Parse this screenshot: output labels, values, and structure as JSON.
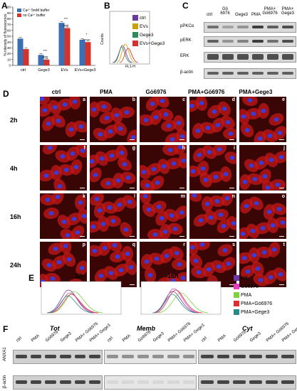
{
  "panels": {
    "A": "A",
    "B": "B",
    "C": "C",
    "D": "D",
    "E": "E",
    "F": "F"
  },
  "chart_data": [
    {
      "type": "bar",
      "ylabel": "% intensity of fluorescence",
      "ylim": [
        0,
        100
      ],
      "yticks": [
        "0",
        "10",
        "20",
        "30",
        "40",
        "50",
        "60",
        "70",
        "80",
        "90",
        "100"
      ],
      "categories": [
        "ctrl",
        "Gege3",
        "EVs",
        "EVs+Gege3"
      ],
      "series": [
        {
          "name": "Ca²⁺ 5mM buffer",
          "color": "#3a6fb5",
          "values": [
            46,
            18,
            73,
            44
          ]
        },
        {
          "name": "no Ca²⁺ buffer",
          "color": "#d2342c",
          "values": [
            28,
            10,
            64,
            40
          ]
        }
      ],
      "annotations": [
        "***",
        "###",
        "***",
        "###",
        "*",
        "******"
      ]
    }
  ],
  "panelB": {
    "yaxis": "Counts",
    "xaxis": "FL1-H",
    "legend": [
      {
        "label": "ctrl",
        "color": "#6b3aa0"
      },
      {
        "label": "EVs",
        "color": "#c8a000"
      },
      {
        "label": "Gege3",
        "color": "#2e8b57"
      },
      {
        "label": "EVs+Gege3",
        "color": "#d83030"
      }
    ]
  },
  "panelC": {
    "columns": [
      "ctrl",
      "Gö 6976",
      "Gege3",
      "PMA",
      "PMA+ Gö6976",
      "PMA+ Gege3"
    ],
    "rows": [
      "pPKCα",
      "pERK",
      "ERK",
      "β-actin"
    ]
  },
  "panelD": {
    "columns": [
      "ctrl",
      "PMA",
      "Gö6976",
      "PMA+Gö6976",
      "PMA+Gege3"
    ],
    "rows": [
      "2h",
      "4h",
      "16h",
      "24h"
    ],
    "letters": [
      "a",
      "b",
      "c",
      "d",
      "e",
      "f",
      "g",
      "h",
      "i",
      "j",
      "k",
      "l",
      "m",
      "n",
      "o",
      "p",
      "q",
      "r",
      "s",
      "t"
    ]
  },
  "panelE": {
    "times": [
      "2h",
      "16h"
    ],
    "legend": [
      {
        "label": "ctrl",
        "color": "#6b3aa0"
      },
      {
        "label": "Gö6976",
        "color": "#e040c0"
      },
      {
        "label": "PMA",
        "color": "#80d040"
      },
      {
        "label": "PMA+Gö6976",
        "color": "#d83030"
      },
      {
        "label": "PMA+Gege3",
        "color": "#2a8a8a"
      }
    ]
  },
  "panelF": {
    "groups": [
      "Tot",
      "Memb",
      "Cyt"
    ],
    "lanes": [
      "ctrl",
      "PMA",
      "Gö6976",
      "Gege3",
      "PMA+ Gö6976",
      "PMA+ Gege3"
    ],
    "rows": [
      "ANXA1",
      "β-actin"
    ]
  }
}
